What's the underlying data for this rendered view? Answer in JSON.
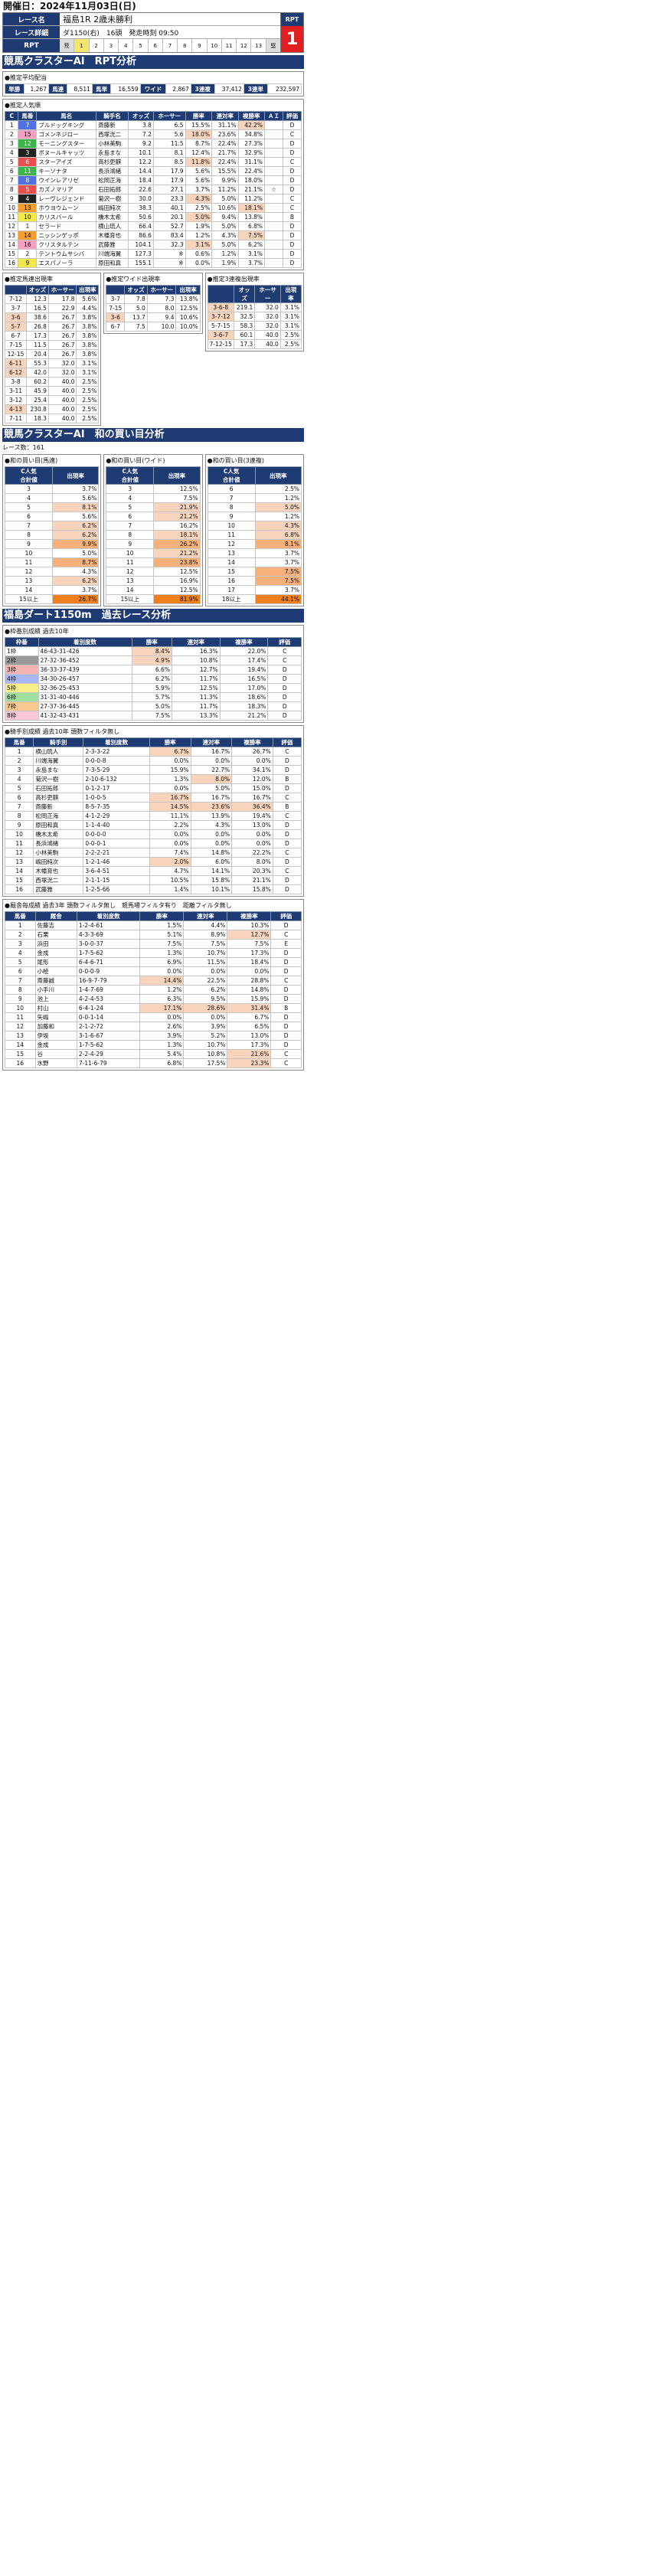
{
  "header": {
    "date": "開催日：2024年11月03日(日)",
    "race_name_label": "レース名",
    "race_name": "福島1R 2歳未勝利",
    "race_detail_label": "レース詳細",
    "race_detail": [
      "ダ1150(右)",
      "16頭",
      "発走時刻 09:50"
    ],
    "rpt_label": "RPT",
    "rpt_cells": [
      "荒",
      "1",
      "2",
      "3",
      "4",
      "5",
      "6",
      "7",
      "8",
      "9",
      "10",
      "11",
      "12",
      "13",
      "堅"
    ],
    "rpt_value": "1"
  },
  "section1": {
    "title": "競馬クラスターAI　RPT分析",
    "avg_title": "●推定平均配当",
    "avg": [
      {
        "label": "単勝",
        "value": "1,267"
      },
      {
        "label": "馬連",
        "value": "8,511"
      },
      {
        "label": "馬単",
        "value": "16,559"
      },
      {
        "label": "ワイド",
        "value": "2,867"
      },
      {
        "label": "3連複",
        "value": "37,412"
      },
      {
        "label": "3連単",
        "value": "232,597"
      }
    ],
    "pop_title": "●推定人気順",
    "pop_headers": [
      "C",
      "馬番",
      "馬名",
      "騎手名",
      "オッズ",
      "ホーサー",
      "勝率",
      "連対率",
      "複勝率",
      "ＡＩ",
      "評価"
    ],
    "pop_rows": [
      [
        "1",
        "7",
        "ブルドッグキング",
        "斎藤新",
        "3.8",
        "6.5",
        "15.5%",
        "31.1%",
        "42.2%",
        "",
        "D"
      ],
      [
        "2",
        "15",
        "ゴメンネジロー",
        "西塚洸二",
        "7.2",
        "5.6",
        "18.0%",
        "23.6%",
        "34.8%",
        "",
        "C"
      ],
      [
        "3",
        "12",
        "モーニングスター",
        "小林美駒",
        "9.2",
        "11.5",
        "8.7%",
        "22.4%",
        "27.3%",
        "",
        "D"
      ],
      [
        "4",
        "3",
        "ボヌールキャッツ",
        "永島まな",
        "10.1",
        "8.1",
        "12.4%",
        "21.7%",
        "32.9%",
        "",
        "D"
      ],
      [
        "5",
        "6",
        "スターアイズ",
        "高杉吏麒",
        "12.2",
        "8.5",
        "11.8%",
        "22.4%",
        "31.1%",
        "",
        "C"
      ],
      [
        "6",
        "11",
        "キーソナタ",
        "長浜鴻緒",
        "14.4",
        "17.9",
        "5.6%",
        "15.5%",
        "22.4%",
        "",
        "D"
      ],
      [
        "7",
        "8",
        "ウインレアリゼ",
        "松岡正海",
        "18.4",
        "17.9",
        "5.6%",
        "9.9%",
        "18.0%",
        "",
        "D"
      ],
      [
        "8",
        "5",
        "カズノマリア",
        "石田拓郎",
        "22.6",
        "27.1",
        "3.7%",
        "11.2%",
        "21.1%",
        "☆",
        "D"
      ],
      [
        "9",
        "4",
        "レーヴレジェンド",
        "菊沢一樹",
        "30.0",
        "23.3",
        "4.3%",
        "5.0%",
        "11.2%",
        "",
        "C"
      ],
      [
        "10",
        "13",
        "ホウヨウムーン",
        "嶋田純次",
        "38.3",
        "40.1",
        "2.5%",
        "10.6%",
        "18.1%",
        "",
        "C"
      ],
      [
        "11",
        "10",
        "カリスバール",
        "橋木太希",
        "50.6",
        "20.1",
        "5.0%",
        "9.4%",
        "13.8%",
        "",
        "B"
      ],
      [
        "12",
        "1",
        "セラード",
        "横山琉人",
        "66.4",
        "52.7",
        "1.9%",
        "5.0%",
        "6.8%",
        "",
        "D"
      ],
      [
        "13",
        "14",
        "ニッシンゲッポ",
        "木幡育也",
        "86.6",
        "83.4",
        "1.2%",
        "4.3%",
        "7.5%",
        "",
        "D"
      ],
      [
        "14",
        "16",
        "クリスタルテン",
        "武藤雅",
        "104.1",
        "32.3",
        "3.1%",
        "5.0%",
        "6.2%",
        "",
        "D"
      ],
      [
        "15",
        "2",
        "テントウムサシバ",
        "川端海翼",
        "127.3",
        "※",
        "0.6%",
        "1.2%",
        "3.1%",
        "",
        "D"
      ],
      [
        "16",
        "9",
        "エスパノーラ",
        "原田和真",
        "155.1",
        "※",
        "0.0%",
        "1.9%",
        "3.7%",
        "",
        "D"
      ]
    ],
    "umaren_title": "●推定馬連出現率",
    "umaren_headers": [
      "",
      "オッズ",
      "ホーサー",
      "出現率"
    ],
    "umaren_rows": [
      [
        "7-12",
        "12.3",
        "17.8",
        "5.6%"
      ],
      [
        "3-7",
        "16.5",
        "22.9",
        "4.4%"
      ],
      [
        "3-6",
        "38.6",
        "26.7",
        "3.8%"
      ],
      [
        "5-7",
        "26.8",
        "26.7",
        "3.8%"
      ],
      [
        "6-7",
        "17.3",
        "26.7",
        "3.8%"
      ],
      [
        "7-15",
        "11.5",
        "26.7",
        "3.8%"
      ],
      [
        "12-15",
        "20.4",
        "26.7",
        "3.8%"
      ],
      [
        "6-11",
        "55.3",
        "32.0",
        "3.1%"
      ],
      [
        "6-12",
        "42.0",
        "32.0",
        "3.1%"
      ],
      [
        "3-8",
        "60.2",
        "40.0",
        "2.5%"
      ],
      [
        "3-11",
        "45.9",
        "40.0",
        "2.5%"
      ],
      [
        "3-12",
        "25.4",
        "40.0",
        "2.5%"
      ],
      [
        "4-13",
        "230.8",
        "40.0",
        "2.5%"
      ],
      [
        "7-11",
        "18.3",
        "40.0",
        "2.5%"
      ]
    ],
    "wide_title": "●推定ワイド出現率",
    "wide_rows": [
      [
        "3-7",
        "7.8",
        "7.3",
        "13.8%"
      ],
      [
        "7-15",
        "5.0",
        "8.0",
        "12.5%"
      ],
      [
        "3-6",
        "13.7",
        "9.4",
        "10.6%"
      ],
      [
        "6-7",
        "7.5",
        "10.0",
        "10.0%"
      ]
    ],
    "trio_title": "●推定3連複出現率",
    "trio_rows": [
      [
        "3-6-8",
        "219.1",
        "32.0",
        "3.1%"
      ],
      [
        "3-7-12",
        "32.5",
        "32.0",
        "3.1%"
      ],
      [
        "5-7-15",
        "58.3",
        "32.0",
        "3.1%"
      ],
      [
        "3-6-7",
        "60.1",
        "40.0",
        "2.5%"
      ],
      [
        "7-12-15",
        "17.3",
        "40.0",
        "2.5%"
      ]
    ]
  },
  "section2": {
    "title": "競馬クラスターAI　和の買い目分析",
    "race_count": "レース数：161",
    "headers": [
      "C人気\n合計値",
      "出現率"
    ],
    "umaren_title": "●和の買い目(馬連)",
    "umaren": [
      [
        "3",
        "3.7%"
      ],
      [
        "4",
        "5.6%"
      ],
      [
        "5",
        "8.1%"
      ],
      [
        "6",
        "5.6%"
      ],
      [
        "7",
        "6.2%"
      ],
      [
        "8",
        "6.2%"
      ],
      [
        "9",
        "9.9%"
      ],
      [
        "10",
        "5.0%"
      ],
      [
        "11",
        "8.7%"
      ],
      [
        "12",
        "4.3%"
      ],
      [
        "13",
        "6.2%"
      ],
      [
        "14",
        "3.7%"
      ],
      [
        "15以上",
        "26.7%"
      ]
    ],
    "wide_title": "●和の買い目(ワイド)",
    "wide": [
      [
        "3",
        "12.5%"
      ],
      [
        "4",
        "7.5%"
      ],
      [
        "5",
        "21.9%"
      ],
      [
        "6",
        "21.2%"
      ],
      [
        "7",
        "16.2%"
      ],
      [
        "8",
        "18.1%"
      ],
      [
        "9",
        "26.2%"
      ],
      [
        "10",
        "21.2%"
      ],
      [
        "11",
        "23.8%"
      ],
      [
        "12",
        "12.5%"
      ],
      [
        "13",
        "16.9%"
      ],
      [
        "14",
        "12.5%"
      ],
      [
        "15以上",
        "81.9%"
      ]
    ],
    "trio_title": "●和の買い目(3連複)",
    "trio": [
      [
        "6",
        "2.5%"
      ],
      [
        "7",
        "1.2%"
      ],
      [
        "8",
        "5.0%"
      ],
      [
        "9",
        "1.2%"
      ],
      [
        "10",
        "4.3%"
      ],
      [
        "11",
        "6.8%"
      ],
      [
        "12",
        "8.1%"
      ],
      [
        "13",
        "3.7%"
      ],
      [
        "14",
        "3.7%"
      ],
      [
        "15",
        "7.5%"
      ],
      [
        "16",
        "7.5%"
      ],
      [
        "17",
        "3.7%"
      ],
      [
        "18以上",
        "44.1%"
      ]
    ]
  },
  "section3": {
    "title": "福島ダート1150m　過去レース分析",
    "waku_title": "●枠番別成績 過去10年",
    "waku_headers": [
      "枠番",
      "着別度数",
      "勝率",
      "連対率",
      "複勝率",
      "評価"
    ],
    "waku_rows": [
      [
        "1枠",
        "46-43-31-426",
        "8.4%",
        "16.3%",
        "22.0%",
        "C"
      ],
      [
        "2枠",
        "27-32-36-452",
        "4.9%",
        "10.8%",
        "17.4%",
        "C"
      ],
      [
        "3枠",
        "36-33-37-439",
        "6.6%",
        "12.7%",
        "19.4%",
        "D"
      ],
      [
        "4枠",
        "34-30-26-457",
        "6.2%",
        "11.7%",
        "16.5%",
        "D"
      ],
      [
        "5枠",
        "32-36-25-453",
        "5.9%",
        "12.5%",
        "17.0%",
        "D"
      ],
      [
        "6枠",
        "31-31-40-446",
        "5.7%",
        "11.3%",
        "18.6%",
        "D"
      ],
      [
        "7枠",
        "27-37-36-445",
        "5.0%",
        "11.7%",
        "18.3%",
        "D"
      ],
      [
        "8枠",
        "41-32-43-431",
        "7.5%",
        "13.3%",
        "21.2%",
        "D"
      ]
    ],
    "jockey_title": "●騎手別成績 過去10年 頭数フィルタ無し",
    "jockey_headers": [
      "馬番",
      "騎手別",
      "着別度数",
      "勝率",
      "連対率",
      "複勝率",
      "評価"
    ],
    "jockey_rows": [
      [
        "1",
        "横山琉人",
        "2-3-3-22",
        "6.7%",
        "16.7%",
        "26.7%",
        "C"
      ],
      [
        "2",
        "川端海翼",
        "0-0-0-8",
        "0.0%",
        "0.0%",
        "0.0%",
        "D"
      ],
      [
        "3",
        "永島まな",
        "7-3-5-29",
        "15.9%",
        "22.7%",
        "34.1%",
        "D"
      ],
      [
        "4",
        "菊沢一樹",
        "2-10-6-132",
        "1.3%",
        "8.0%",
        "12.0%",
        "B"
      ],
      [
        "5",
        "石田拓郎",
        "0-1-2-17",
        "0.0%",
        "5.0%",
        "15.0%",
        "D"
      ],
      [
        "6",
        "高杉吏麒",
        "1-0-0-5",
        "16.7%",
        "16.7%",
        "16.7%",
        "C"
      ],
      [
        "7",
        "斎藤新",
        "8-5-7-35",
        "14.5%",
        "23.6%",
        "36.4%",
        "B"
      ],
      [
        "8",
        "松岡正海",
        "4-1-2-29",
        "11.1%",
        "13.9%",
        "19.4%",
        "C"
      ],
      [
        "9",
        "原田和真",
        "1-1-4-40",
        "2.2%",
        "4.3%",
        "13.0%",
        "D"
      ],
      [
        "10",
        "橋木太希",
        "0-0-0-0",
        "0.0%",
        "0.0%",
        "0.0%",
        "D"
      ],
      [
        "11",
        "長浜鴻緒",
        "0-0-0-1",
        "0.0%",
        "0.0%",
        "0.0%",
        "D"
      ],
      [
        "12",
        "小林美駒",
        "2-2-2-21",
        "7.4%",
        "14.8%",
        "22.2%",
        "C"
      ],
      [
        "13",
        "嶋田純次",
        "1-2-1-46",
        "2.0%",
        "6.0%",
        "8.0%",
        "D"
      ],
      [
        "14",
        "木幡育也",
        "3-6-4-51",
        "4.7%",
        "14.1%",
        "20.3%",
        "C"
      ],
      [
        "15",
        "西塚洸二",
        "2-1-1-15",
        "10.5%",
        "15.8%",
        "21.1%",
        "D"
      ],
      [
        "16",
        "武藤雅",
        "1-2-5-66",
        "1.4%",
        "10.1%",
        "15.8%",
        "D"
      ]
    ],
    "trainer_title": "●厩舎毎成績 過去3年 頭数フィルタ無し　競馬場フィルタ有り　距離フィルタ無し",
    "trainer_headers": [
      "馬番",
      "厩舎",
      "着別度数",
      "勝率",
      "連対率",
      "複勝率",
      "評価"
    ],
    "trainer_rows": [
      [
        "1",
        "佐藤吉",
        "1-2-4-61",
        "1.5%",
        "4.4%",
        "10.3%",
        "D"
      ],
      [
        "2",
        "石栗",
        "4-3-3-69",
        "5.1%",
        "8.9%",
        "12.7%",
        "C"
      ],
      [
        "3",
        "浜田",
        "3-0-0-37",
        "7.5%",
        "7.5%",
        "7.5%",
        "E"
      ],
      [
        "4",
        "金成",
        "1-7-5-62",
        "1.3%",
        "10.7%",
        "17.3%",
        "D"
      ],
      [
        "5",
        "尾形",
        "6-4-6-71",
        "6.9%",
        "11.5%",
        "18.4%",
        "D"
      ],
      [
        "6",
        "小桧",
        "0-0-0-9",
        "0.0%",
        "0.0%",
        "0.0%",
        "D"
      ],
      [
        "7",
        "斎藤誠",
        "16-9-7-79",
        "14.4%",
        "22.5%",
        "28.8%",
        "C"
      ],
      [
        "8",
        "小手川",
        "1-4-7-69",
        "1.2%",
        "6.2%",
        "14.8%",
        "D"
      ],
      [
        "9",
        "池上",
        "4-2-4-53",
        "6.3%",
        "9.5%",
        "15.9%",
        "D"
      ],
      [
        "10",
        "村山",
        "6-4-1-24",
        "17.1%",
        "28.6%",
        "31.4%",
        "B"
      ],
      [
        "11",
        "矢嶋",
        "0-0-1-14",
        "0.0%",
        "0.0%",
        "6.7%",
        "D"
      ],
      [
        "12",
        "加藤和",
        "2-1-2-72",
        "2.6%",
        "3.9%",
        "6.5%",
        "D"
      ],
      [
        "13",
        "伊坂",
        "3-1-6-67",
        "3.9%",
        "5.2%",
        "13.0%",
        "D"
      ],
      [
        "14",
        "金成",
        "1-7-5-62",
        "1.3%",
        "10.7%",
        "17.3%",
        "D"
      ],
      [
        "15",
        "谷",
        "2-2-4-29",
        "5.4%",
        "10.8%",
        "21.6%",
        "C"
      ],
      [
        "16",
        "水野",
        "7-11-6-79",
        "6.8%",
        "17.5%",
        "23.3%",
        "C"
      ]
    ]
  }
}
